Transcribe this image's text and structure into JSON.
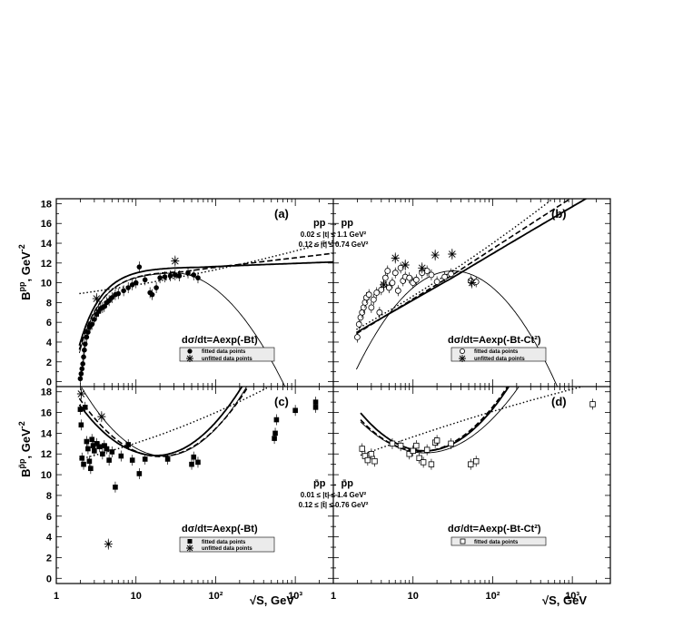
{
  "chart_data": {
    "type": "scatter",
    "x_scale": "log",
    "xlim": [
      1,
      3000
    ],
    "ylim": [
      -0.5,
      18.5
    ],
    "x_ticks": [
      "1",
      "10",
      "10²",
      "10³"
    ],
    "y_ticks": [
      "0",
      "2",
      "4",
      "6",
      "8",
      "10",
      "12",
      "14",
      "16",
      "18"
    ],
    "x_axis_label": "√S, GeV",
    "y_label_top_main": "B",
    "y_label_top_sup": "pp",
    "y_label_top_unit": ", GeV",
    "y_label_top_unit_sup": "-2",
    "y_label_bottom_main": "B",
    "y_label_bottom_sup": "p̄p",
    "y_label_bottom_unit": ", GeV",
    "y_label_bottom_unit_sup": "-2",
    "reaction_top": "pp → pp",
    "cuts_top": [
      "0.02 ≤ |t| ≤ 1.1 GeV²",
      "0.12 ≤ |t̄| ≤ 0.74 GeV²"
    ],
    "reaction_bottom": "p̄p → p̄p",
    "cuts_bottom": [
      "0.01 ≤ |t| ≤ 1.4 GeV²",
      "0.12 ≤ |t̄| ≤ 0.76 GeV²"
    ],
    "panels": [
      {
        "id": "a",
        "tag": "(a)",
        "formula": "dσ/dt=Aexp(-Bt)",
        "legend": [
          "fitted data points",
          "unfitted data points"
        ],
        "fitted": [
          [
            2.0,
            0.3
          ],
          [
            2.05,
            0.8
          ],
          [
            2.1,
            1.3
          ],
          [
            2.15,
            1.8
          ],
          [
            2.2,
            2.5
          ],
          [
            2.25,
            3.2
          ],
          [
            2.3,
            3.8
          ],
          [
            2.4,
            4.5
          ],
          [
            2.5,
            5.0
          ],
          [
            2.6,
            5.5
          ],
          [
            2.7,
            5.7
          ],
          [
            2.8,
            5.8
          ],
          [
            3.0,
            6.3
          ],
          [
            3.2,
            6.8
          ],
          [
            3.4,
            7.1
          ],
          [
            3.6,
            7.4
          ],
          [
            3.8,
            7.5
          ],
          [
            4.0,
            7.6
          ],
          [
            4.3,
            8.0
          ],
          [
            4.6,
            8.2
          ],
          [
            5.0,
            8.5
          ],
          [
            5.5,
            8.8
          ],
          [
            6.0,
            8.9
          ],
          [
            7.0,
            9.2
          ],
          [
            8.0,
            9.5
          ],
          [
            9.0,
            9.8
          ],
          [
            10.0,
            10.0
          ],
          [
            11.0,
            11.6
          ],
          [
            13.0,
            10.3
          ],
          [
            15.0,
            9.0
          ],
          [
            16.0,
            8.8
          ],
          [
            18.0,
            9.5
          ],
          [
            20.0,
            10.5
          ],
          [
            23.0,
            10.6
          ],
          [
            27.0,
            10.7
          ],
          [
            31.0,
            10.8
          ],
          [
            35.0,
            10.7
          ],
          [
            45.0,
            11.0
          ],
          [
            53.0,
            10.8
          ],
          [
            60.0,
            10.5
          ]
        ],
        "unfitted": [
          [
            3.2,
            8.4
          ],
          [
            31.0,
            12.2
          ]
        ],
        "curves": [
          "solid-thick",
          "dashed",
          "dotted",
          "solid-thin"
        ]
      },
      {
        "id": "b",
        "tag": "(b)",
        "formula": "dσ/dt=Aexp(-Bt-Ct²)",
        "legend": [
          "fitted data points",
          "unfitted data points"
        ],
        "fitted": [
          [
            2.0,
            4.5
          ],
          [
            2.1,
            5.8
          ],
          [
            2.2,
            6.5
          ],
          [
            2.3,
            7.0
          ],
          [
            2.4,
            7.5
          ],
          [
            2.5,
            8.0
          ],
          [
            2.6,
            8.5
          ],
          [
            2.8,
            8.8
          ],
          [
            3.0,
            7.5
          ],
          [
            3.2,
            8.3
          ],
          [
            3.5,
            9.0
          ],
          [
            3.8,
            7.0
          ],
          [
            4.0,
            9.3
          ],
          [
            4.3,
            9.8
          ],
          [
            4.5,
            10.5
          ],
          [
            4.8,
            11.2
          ],
          [
            5.0,
            9.5
          ],
          [
            5.5,
            10.0
          ],
          [
            6.0,
            11.0
          ],
          [
            6.5,
            9.2
          ],
          [
            7.0,
            11.5
          ],
          [
            7.5,
            10.2
          ],
          [
            8.0,
            10.6
          ],
          [
            9.0,
            10.5
          ],
          [
            10.0,
            10.0
          ],
          [
            11.0,
            10.3
          ],
          [
            13.0,
            11.0
          ],
          [
            15.0,
            11.2
          ],
          [
            17.0,
            10.8
          ],
          [
            20.0,
            10.1
          ],
          [
            25.0,
            10.6
          ],
          [
            30.0,
            10.9
          ],
          [
            53.0,
            10.2
          ],
          [
            62.0,
            10.1
          ]
        ],
        "unfitted": [
          [
            4.3,
            9.8
          ],
          [
            6.0,
            12.5
          ],
          [
            8.0,
            11.8
          ],
          [
            13.0,
            11.5
          ],
          [
            19.0,
            12.8
          ],
          [
            31.0,
            12.9
          ],
          [
            55.0,
            10.0
          ]
        ],
        "curves": [
          "solid-thick",
          "dashed",
          "dotted",
          "solid-thin"
        ]
      },
      {
        "id": "c",
        "tag": "(c)",
        "formula": "dσ/dt=Aexp(-Bt)",
        "legend": [
          "fitted data points",
          "unfitted data points"
        ],
        "fitted": [
          [
            2.0,
            16.3
          ],
          [
            2.05,
            14.8
          ],
          [
            2.1,
            11.6
          ],
          [
            2.2,
            11.0
          ],
          [
            2.3,
            16.5
          ],
          [
            2.4,
            13.2
          ],
          [
            2.5,
            12.5
          ],
          [
            2.6,
            11.3
          ],
          [
            2.7,
            10.6
          ],
          [
            2.8,
            13.4
          ],
          [
            2.9,
            12.8
          ],
          [
            3.0,
            12.3
          ],
          [
            3.2,
            13.0
          ],
          [
            3.5,
            12.7
          ],
          [
            3.8,
            12.0
          ],
          [
            4.0,
            12.8
          ],
          [
            4.3,
            12.5
          ],
          [
            4.6,
            11.4
          ],
          [
            5.0,
            12.2
          ],
          [
            5.5,
            8.8
          ],
          [
            6.5,
            11.8
          ],
          [
            8.0,
            12.9
          ],
          [
            9.0,
            11.4
          ],
          [
            11.0,
            10.1
          ],
          [
            13.0,
            11.5
          ],
          [
            25.0,
            11.5
          ],
          [
            50.0,
            11.0
          ],
          [
            53.0,
            11.7
          ],
          [
            60.0,
            11.2
          ],
          [
            546.0,
            13.5
          ],
          [
            560.0,
            14.0
          ],
          [
            580.0,
            15.3
          ],
          [
            1000.0,
            16.2
          ],
          [
            1800.0,
            16.5
          ],
          [
            1800.0,
            17.0
          ]
        ],
        "unfitted": [
          [
            2.05,
            17.8
          ],
          [
            3.7,
            15.6
          ],
          [
            4.5,
            3.3
          ]
        ],
        "curves": [
          "solid-thick",
          "dashed",
          "dotted",
          "solid-thin"
        ]
      },
      {
        "id": "d",
        "tag": "(d)",
        "formula": "dσ/dt=Aexp(-Bt-Ct²)",
        "legend": [
          "fitted data points"
        ],
        "fitted": [
          [
            2.3,
            12.5
          ],
          [
            2.5,
            11.8
          ],
          [
            2.7,
            11.4
          ],
          [
            3.0,
            12.0
          ],
          [
            3.3,
            11.3
          ],
          [
            5.5,
            13.0
          ],
          [
            7.0,
            12.8
          ],
          [
            9.0,
            12.0
          ],
          [
            10.0,
            12.3
          ],
          [
            11.0,
            12.8
          ],
          [
            12.0,
            11.6
          ],
          [
            13.5,
            11.2
          ],
          [
            15.0,
            12.4
          ],
          [
            17.0,
            11.0
          ],
          [
            19.0,
            13.1
          ],
          [
            20.0,
            13.3
          ],
          [
            30.0,
            13.0
          ],
          [
            53.0,
            11.0
          ],
          [
            62.0,
            11.3
          ],
          [
            1800.0,
            16.8
          ]
        ],
        "unfitted": [],
        "curves": [
          "solid-thick",
          "dashed",
          "dotted",
          "solid-thin"
        ]
      }
    ]
  }
}
